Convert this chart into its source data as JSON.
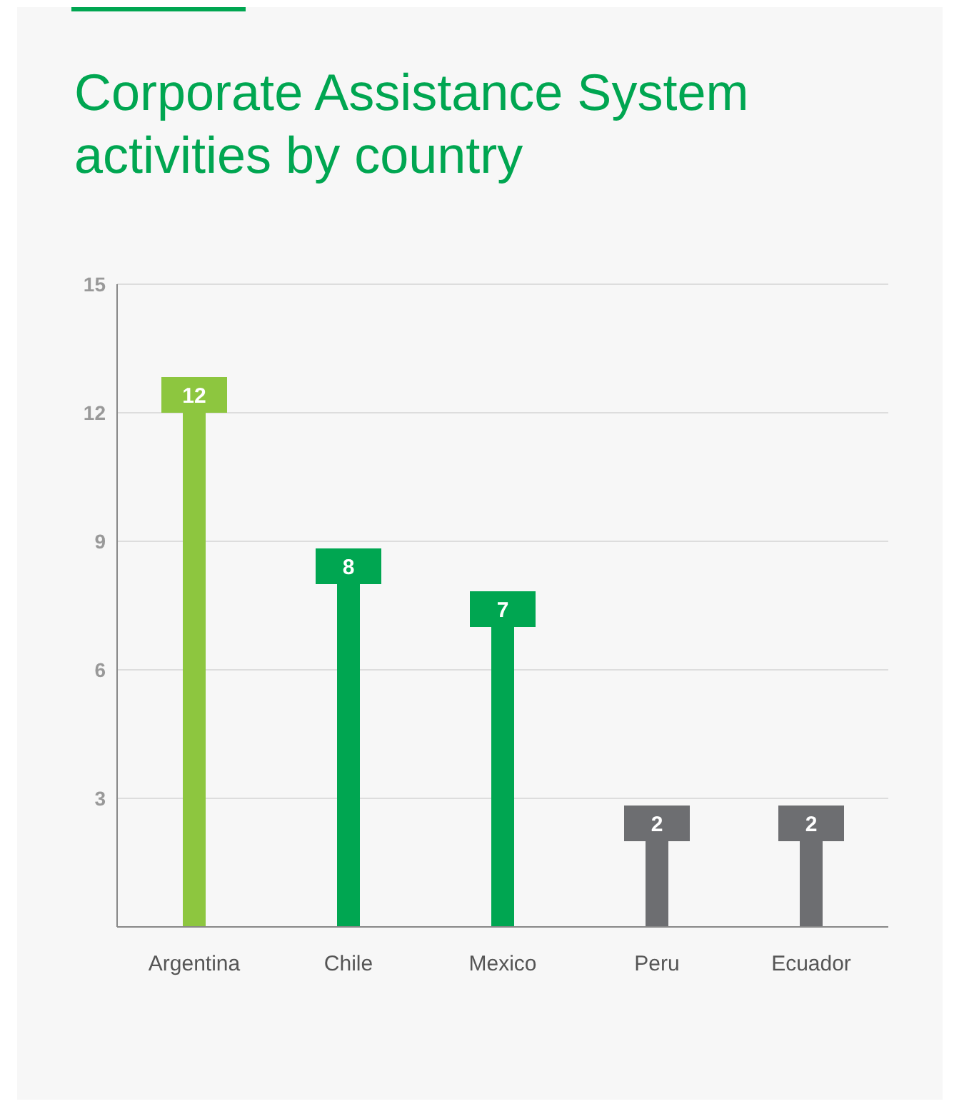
{
  "chart_data": {
    "type": "bar",
    "title": "Corporate Assistance System activities by country",
    "categories": [
      "Argentina",
      "Chile",
      "Mexico",
      "Peru",
      "Ecuador"
    ],
    "values": [
      12,
      8,
      7,
      2,
      2
    ],
    "colors": [
      "#8dc63f",
      "#00a651",
      "#00a651",
      "#6d6e71",
      "#6d6e71"
    ],
    "ylim": [
      0,
      15
    ],
    "yticks": [
      {
        "value": 0,
        "label": null
      },
      3,
      6,
      9,
      12,
      15
    ],
    "grid": "y",
    "data_labels": true
  }
}
